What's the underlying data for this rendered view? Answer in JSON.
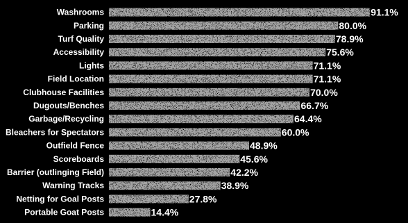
{
  "colors": {
    "background": "#000000",
    "bar": "#a3a3a3",
    "text": "#ffffff"
  },
  "chart_data": {
    "type": "bar",
    "orientation": "horizontal",
    "categories": [
      "Washrooms",
      "Parking",
      "Turf Quality",
      "Accessibility",
      "Lights",
      "Field Location",
      "Clubhouse Facilities",
      "Dugouts/Benches",
      "Garbage/Recycling",
      "Bleachers for Spectators",
      "Outfield Fence",
      "Scoreboards",
      "Barrier (outlinging Field)",
      "Warning Tracks",
      "Netting for Goal Posts",
      "Portable Goat Posts"
    ],
    "values": [
      91.1,
      80.0,
      78.9,
      75.6,
      71.1,
      71.1,
      70.0,
      66.7,
      64.4,
      60.0,
      48.9,
      45.6,
      42.2,
      38.9,
      27.8,
      14.4
    ],
    "value_labels": [
      "91.1%",
      "80.0%",
      "78.9%",
      "75.6%",
      "71.1%",
      "71.1%",
      "70.0%",
      "66.7%",
      "64.4%",
      "60.0%",
      "48.9%",
      "45.6%",
      "42.2%",
      "38.9%",
      "27.8%",
      "14.4%"
    ],
    "unit": "%",
    "xlim": [
      0,
      100
    ],
    "grid": false,
    "title": "",
    "xlabel": "",
    "ylabel": ""
  }
}
